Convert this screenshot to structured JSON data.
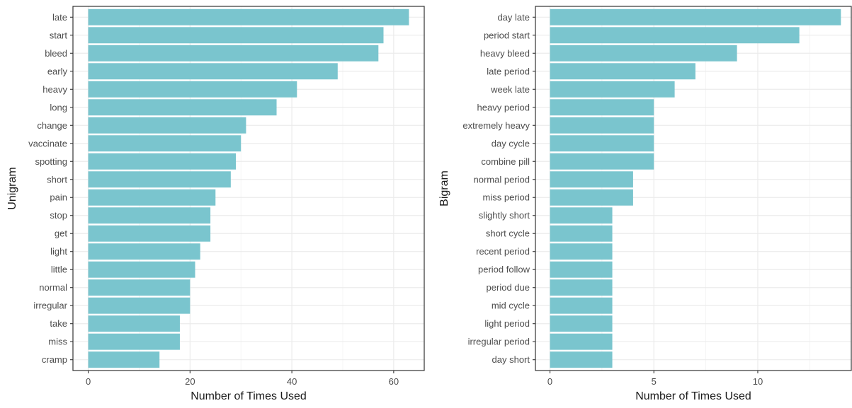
{
  "chart_data": [
    {
      "type": "bar",
      "orientation": "horizontal",
      "xlabel": "Number of Times Used",
      "ylabel": "Unigram",
      "xlim": [
        -3,
        66
      ],
      "xticks": [
        0,
        20,
        40,
        60
      ],
      "grid": true,
      "bar_color": "#7ac5ce",
      "categories": [
        "late",
        "start",
        "bleed",
        "early",
        "heavy",
        "long",
        "change",
        "vaccinate",
        "spotting",
        "short",
        "pain",
        "stop",
        "get",
        "light",
        "little",
        "normal",
        "irregular",
        "take",
        "miss",
        "cramp"
      ],
      "values": [
        63,
        58,
        57,
        49,
        41,
        37,
        31,
        30,
        29,
        28,
        25,
        24,
        24,
        22,
        21,
        20,
        20,
        18,
        18,
        14
      ]
    },
    {
      "type": "bar",
      "orientation": "horizontal",
      "xlabel": "Number of Times Used",
      "ylabel": "Bigram",
      "xlim": [
        -0.7,
        14.5
      ],
      "xticks": [
        0,
        5,
        10
      ],
      "grid": true,
      "bar_color": "#7ac5ce",
      "categories": [
        "day late",
        "period start",
        "heavy bleed",
        "late period",
        "week late",
        "heavy period",
        "extremely heavy",
        "day cycle",
        "combine pill",
        "normal period",
        "miss period",
        "slightly short",
        "short cycle",
        "recent period",
        "period follow",
        "period due",
        "mid cycle",
        "light period",
        "irregular period",
        "day short"
      ],
      "values": [
        14,
        12,
        9,
        7,
        6,
        5,
        5,
        5,
        5,
        4,
        4,
        3,
        3,
        3,
        3,
        3,
        3,
        3,
        3,
        3
      ]
    }
  ]
}
